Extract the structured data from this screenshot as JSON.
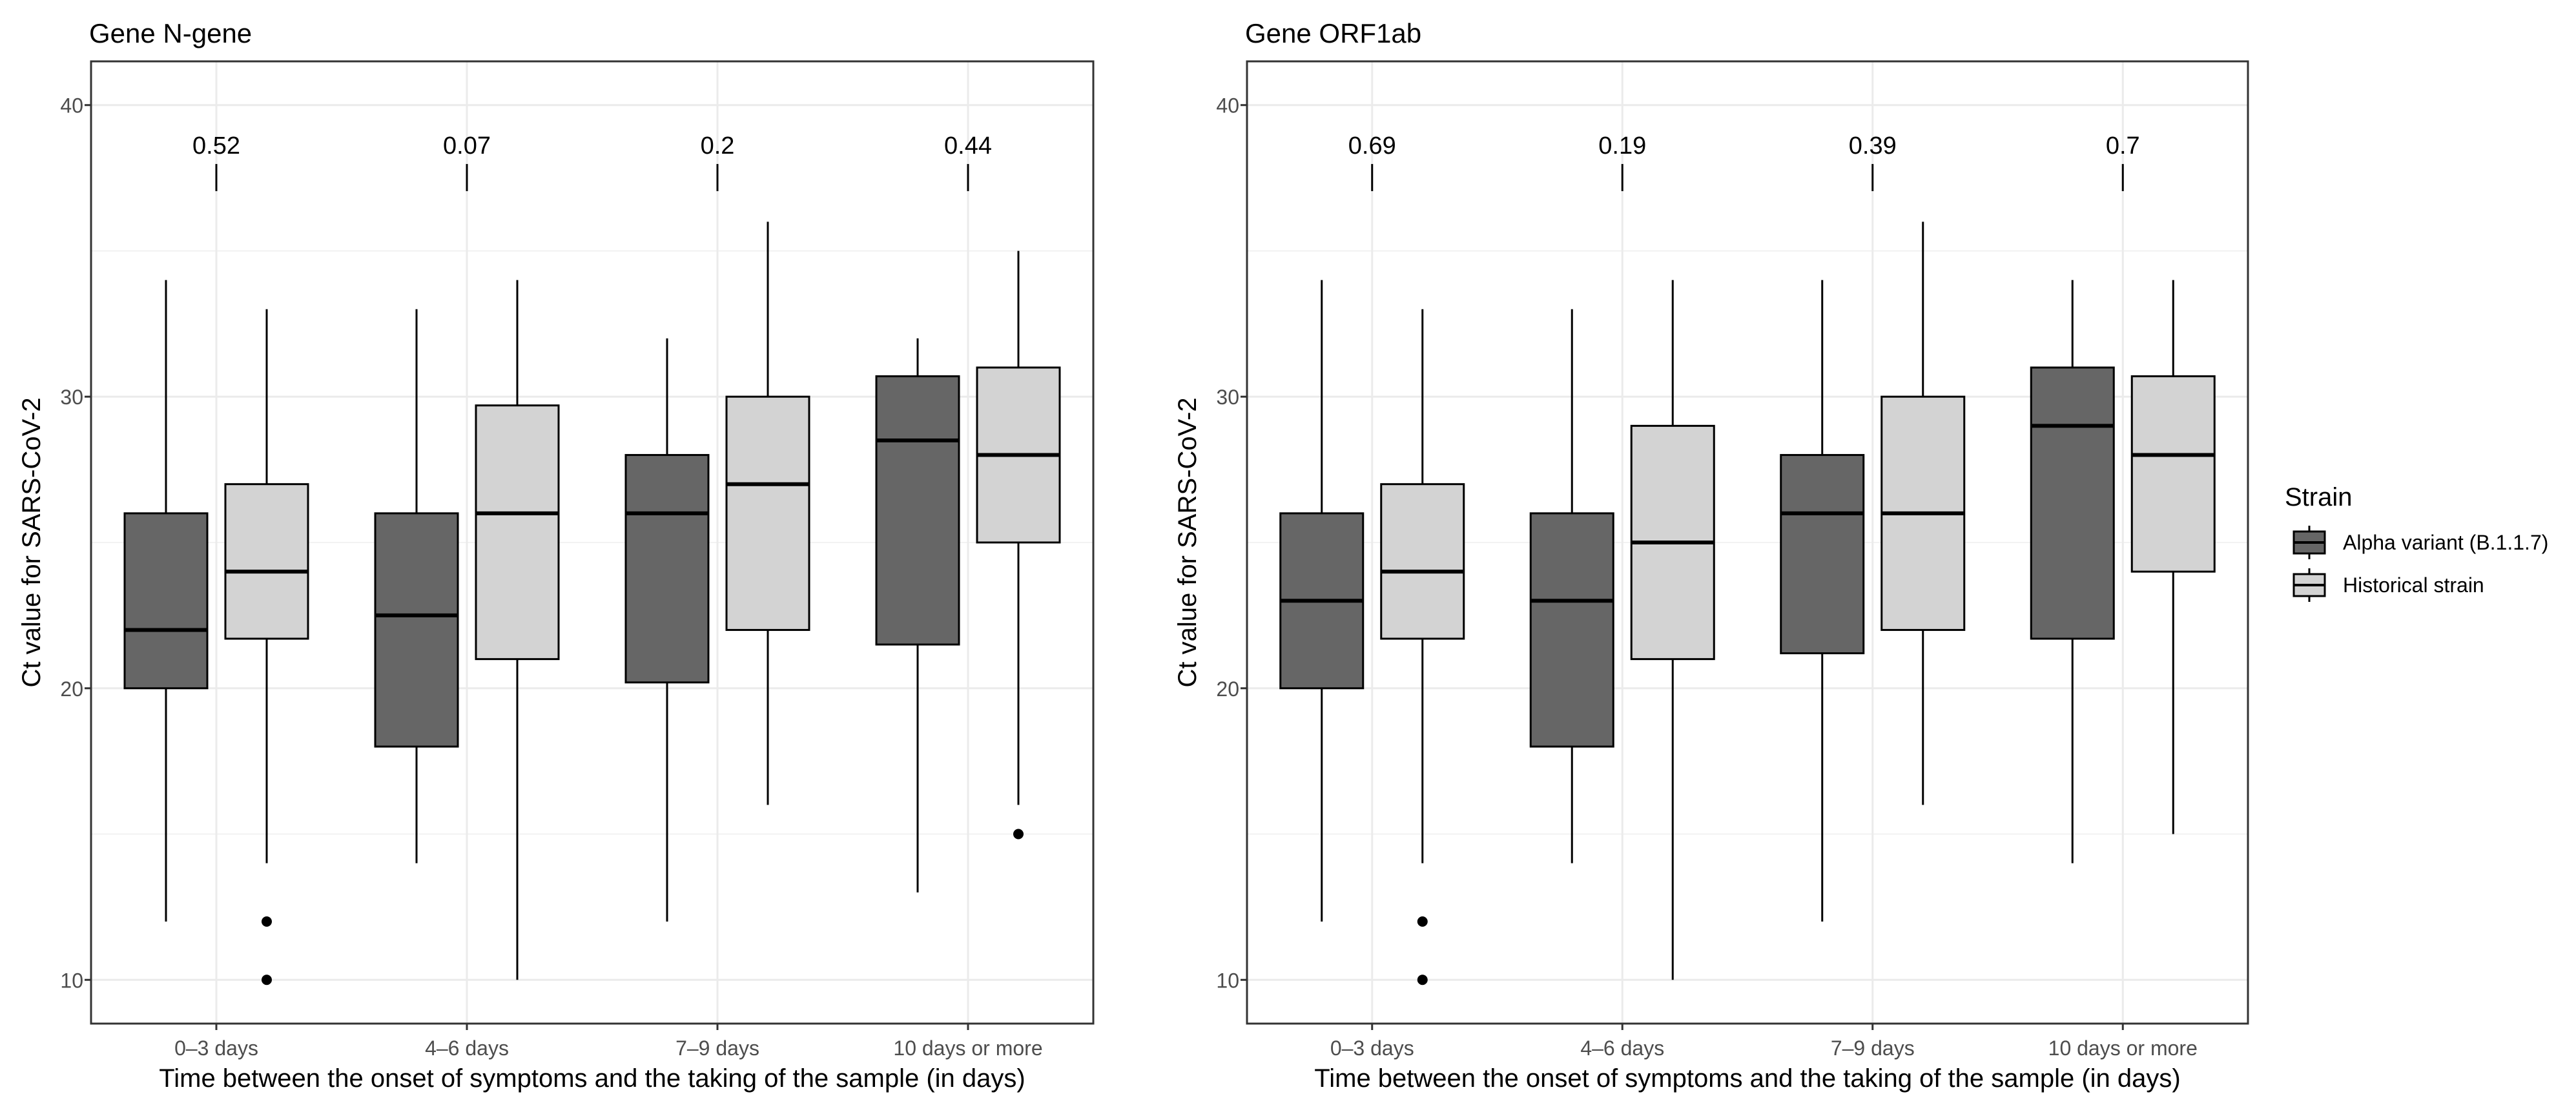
{
  "chart_data": [
    {
      "type": "box",
      "title": "Gene N-gene",
      "xlabel": "Time between the onset of symptoms and the taking of the sample (in days)",
      "ylabel": "Ct value for SARS-CoV-2",
      "ylim": [
        8.5,
        41.5
      ],
      "yticks": [
        10,
        20,
        30,
        40
      ],
      "grid": true,
      "categories": [
        "0–3 days",
        "4–6 days",
        "7–9 days",
        "10 days or more"
      ],
      "pvalues": [
        "0.52",
        "0.07",
        "0.2",
        "0.44"
      ],
      "pvalue_y": 38.6,
      "series": [
        {
          "name": "Alpha variant (B.1.1.7)",
          "color": "#666666",
          "boxes": [
            {
              "min": 12,
              "q1": 20,
              "median": 22,
              "q3": 26,
              "max": 34,
              "outliers": []
            },
            {
              "min": 14,
              "q1": 18,
              "median": 22.5,
              "q3": 26,
              "max": 33,
              "outliers": []
            },
            {
              "min": 12,
              "q1": 20.2,
              "median": 26,
              "q3": 28,
              "max": 32,
              "outliers": []
            },
            {
              "min": 13,
              "q1": 21.5,
              "median": 28.5,
              "q3": 30.7,
              "max": 32,
              "outliers": []
            }
          ]
        },
        {
          "name": "Historical strain",
          "color": "#d3d3d3",
          "boxes": [
            {
              "min": 14,
              "q1": 21.7,
              "median": 24,
              "q3": 27,
              "max": 33,
              "outliers": [
                12,
                10
              ]
            },
            {
              "min": 10,
              "q1": 21,
              "median": 26,
              "q3": 29.7,
              "max": 34,
              "outliers": []
            },
            {
              "min": 16,
              "q1": 22,
              "median": 27,
              "q3": 30,
              "max": 36,
              "outliers": []
            },
            {
              "min": 16,
              "q1": 25,
              "median": 28,
              "q3": 31,
              "max": 35,
              "outliers": [
                15
              ]
            }
          ]
        }
      ]
    },
    {
      "type": "box",
      "title": "Gene ORF1ab",
      "xlabel": "Time between the onset of symptoms and the taking of the sample (in days)",
      "ylabel": "Ct value for SARS-CoV-2",
      "ylim": [
        8.5,
        41.5
      ],
      "yticks": [
        10,
        20,
        30,
        40
      ],
      "grid": true,
      "categories": [
        "0–3 days",
        "4–6 days",
        "7–9 days",
        "10 days or more"
      ],
      "pvalues": [
        "0.69",
        "0.19",
        "0.39",
        "0.7"
      ],
      "pvalue_y": 38.6,
      "series": [
        {
          "name": "Alpha variant (B.1.1.7)",
          "color": "#666666",
          "boxes": [
            {
              "min": 12,
              "q1": 20,
              "median": 23,
              "q3": 26,
              "max": 34,
              "outliers": []
            },
            {
              "min": 14,
              "q1": 18,
              "median": 23,
              "q3": 26,
              "max": 33,
              "outliers": []
            },
            {
              "min": 12,
              "q1": 21.2,
              "median": 26,
              "q3": 28,
              "max": 34,
              "outliers": []
            },
            {
              "min": 14,
              "q1": 21.7,
              "median": 29,
              "q3": 31,
              "max": 34,
              "outliers": []
            }
          ]
        },
        {
          "name": "Historical strain",
          "color": "#d3d3d3",
          "boxes": [
            {
              "min": 14,
              "q1": 21.7,
              "median": 24,
              "q3": 27,
              "max": 33,
              "outliers": [
                12,
                10
              ]
            },
            {
              "min": 10,
              "q1": 21,
              "median": 25,
              "q3": 29,
              "max": 34,
              "outliers": []
            },
            {
              "min": 16,
              "q1": 22,
              "median": 26,
              "q3": 30,
              "max": 36,
              "outliers": []
            },
            {
              "min": 15,
              "q1": 24,
              "median": 28,
              "q3": 30.7,
              "max": 34,
              "outliers": []
            }
          ]
        }
      ]
    }
  ],
  "legend": {
    "title": "Strain",
    "placement": "right",
    "items": [
      {
        "label": "Alpha variant (B.1.1.7)",
        "color": "#666666"
      },
      {
        "label": "Historical strain",
        "color": "#d3d3d3"
      }
    ]
  }
}
